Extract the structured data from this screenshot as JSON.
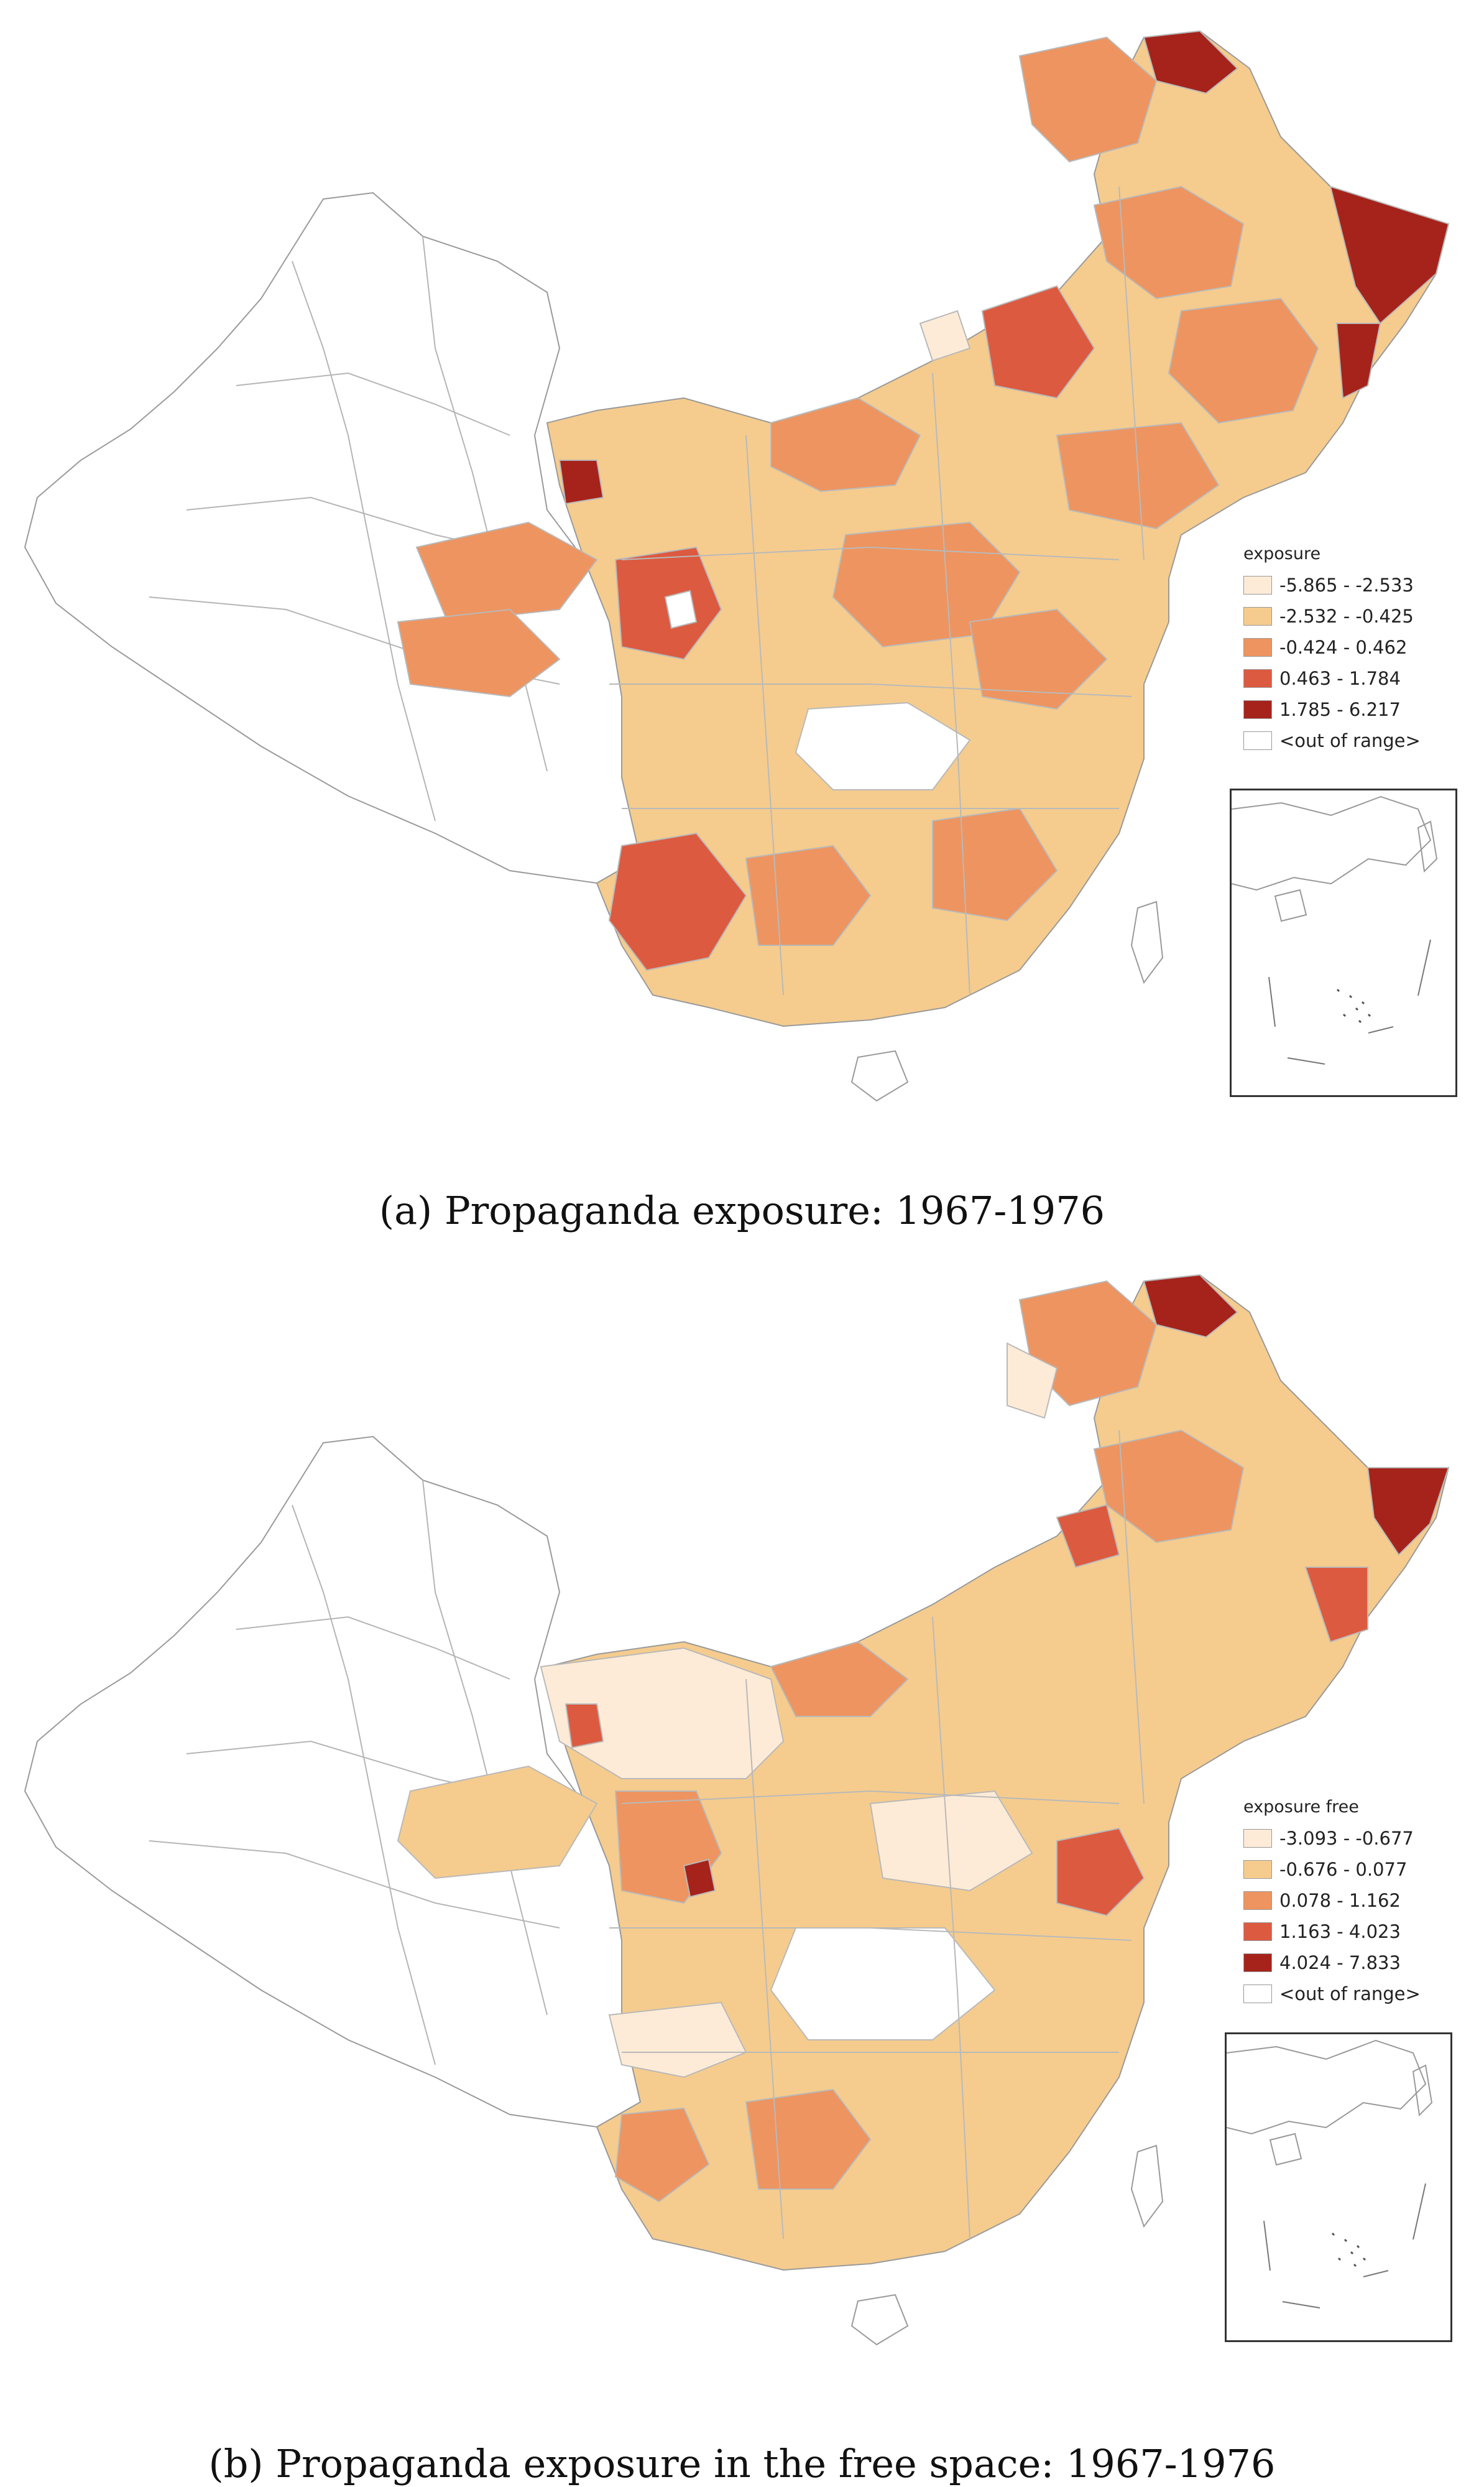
{
  "colors": {
    "c1": "#fdebd7",
    "c2": "#f5cc8e",
    "c3": "#ee9460",
    "c4": "#dc5a40",
    "c5": "#a5231b",
    "out": "#ffffff",
    "boundary": "#b9b9b9"
  },
  "panels": [
    {
      "caption": "(a) Propaganda exposure: 1967-1976",
      "legend": {
        "title": "exposure",
        "items": [
          {
            "label": "-5.865 - -2.533"
          },
          {
            "label": "-2.532 - -0.425"
          },
          {
            "label": "-0.424 - 0.462"
          },
          {
            "label": "0.463 - 1.784"
          },
          {
            "label": "1.785 - 6.217"
          },
          {
            "label": "<out of range>"
          }
        ]
      }
    },
    {
      "caption": "(b) Propaganda exposure in the free space: 1967-1976",
      "legend": {
        "title": "exposure free",
        "items": [
          {
            "label": "-3.093 - -0.677"
          },
          {
            "label": "-0.676 - 0.077"
          },
          {
            "label": "0.078 - 1.162"
          },
          {
            "label": "1.163 - 4.023"
          },
          {
            "label": "4.024 - 7.833"
          },
          {
            "label": "<out of range>"
          }
        ]
      }
    }
  ]
}
